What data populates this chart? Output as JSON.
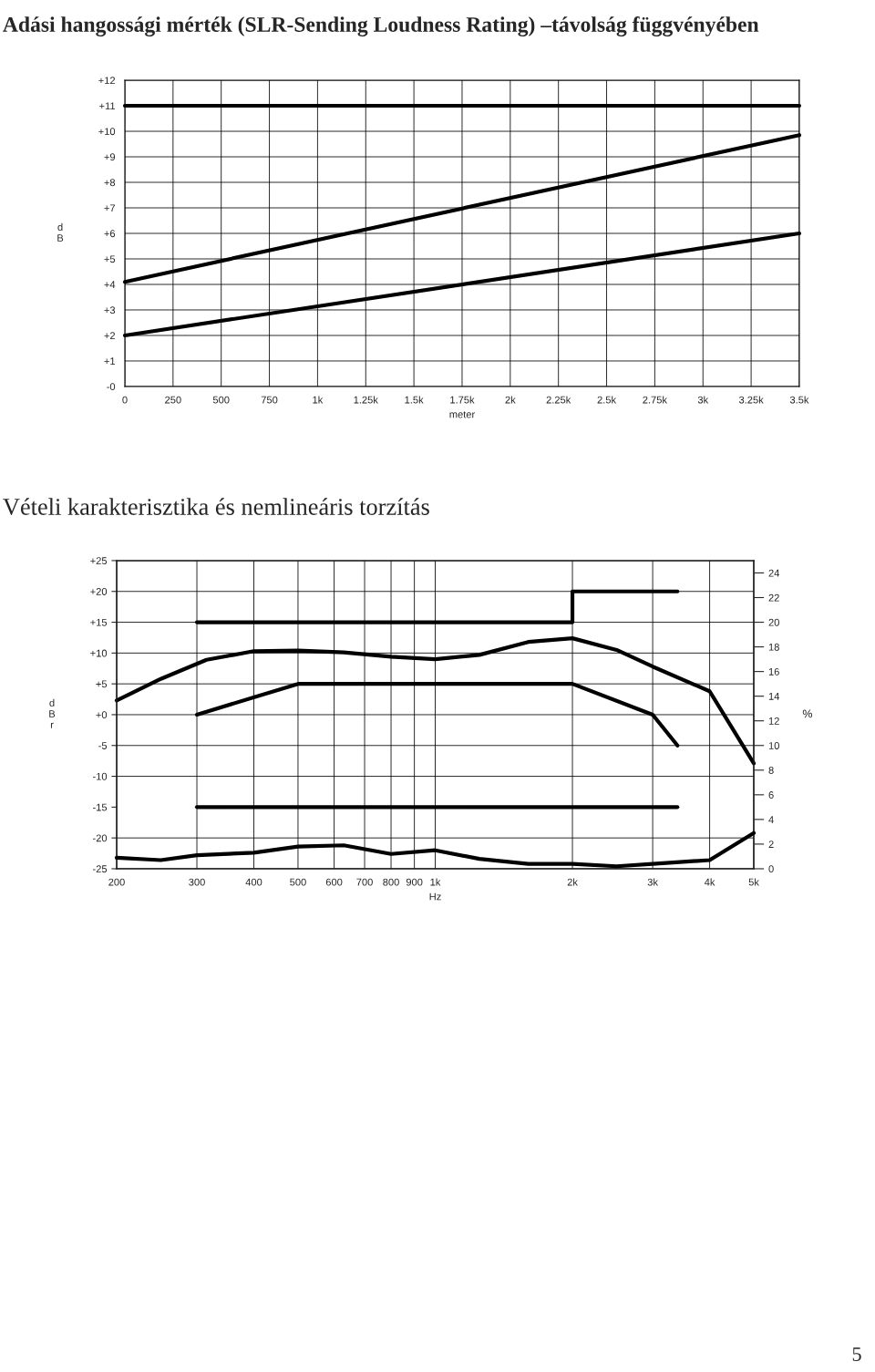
{
  "chart_data": [
    {
      "type": "line",
      "title": "Adási hangossági mérték (SLR-Sending Loudness Rating) –távolság függvényében",
      "xlabel": "meter",
      "ylabel": "dB",
      "xlim": [
        0,
        3500
      ],
      "xticks": [
        0,
        250,
        500,
        750,
        {
          "value": 1000,
          "label": "1k"
        },
        {
          "value": 1250,
          "label": "1.25k"
        },
        {
          "value": 1500,
          "label": "1.5k"
        },
        {
          "value": 1750,
          "label": "1.75k"
        },
        {
          "value": 2000,
          "label": "2k"
        },
        {
          "value": 2250,
          "label": "2.25k"
        },
        {
          "value": 2500,
          "label": "2.5k"
        },
        {
          "value": 2750,
          "label": "2.75k"
        },
        {
          "value": 3000,
          "label": "3k"
        },
        {
          "value": 3250,
          "label": "3.25k"
        },
        {
          "value": 3500,
          "label": "3.5k"
        }
      ],
      "ylim": [
        0,
        12
      ],
      "yticks": [
        {
          "value": 0,
          "label": "-0"
        },
        {
          "value": 1,
          "label": "+1"
        },
        {
          "value": 2,
          "label": "+2"
        },
        {
          "value": 3,
          "label": "+3"
        },
        {
          "value": 4,
          "label": "+4"
        },
        {
          "value": 5,
          "label": "+5"
        },
        {
          "value": 6,
          "label": "+6"
        },
        {
          "value": 7,
          "label": "+7"
        },
        {
          "value": 8,
          "label": "+8"
        },
        {
          "value": 9,
          "label": "+9"
        },
        {
          "value": 10,
          "label": "+10"
        },
        {
          "value": 11,
          "label": "+11"
        },
        {
          "value": 12,
          "label": "+12"
        }
      ],
      "grid": true,
      "series": [
        {
          "color": "#000000",
          "x": [
            0,
            3500
          ],
          "values": [
            11,
            11
          ]
        },
        {
          "color": "#000000",
          "x": [
            0,
            3500
          ],
          "values": [
            4.1,
            9.85
          ]
        },
        {
          "color": "#000000",
          "x": [
            0,
            3500
          ],
          "values": [
            2,
            6
          ]
        }
      ]
    },
    {
      "type": "line",
      "title": "Vételi karakterisztika és nemlineáris torzítás",
      "xlabel": "Hz",
      "ylabel": "dBr",
      "y2label": "%",
      "log": "x",
      "xlim": [
        200,
        5000
      ],
      "xticks": [
        200,
        300,
        400,
        500,
        600,
        700,
        800,
        900,
        {
          "value": 1000,
          "label": "1k"
        },
        {
          "value": 2000,
          "label": "2k"
        },
        {
          "value": 3000,
          "label": "3k"
        },
        {
          "value": 4000,
          "label": "4k"
        },
        {
          "value": 5000,
          "label": "5k"
        }
      ],
      "ylim": [
        -25,
        25
      ],
      "yticks": [
        -25,
        -20,
        -15,
        -10,
        -5,
        {
          "value": 0,
          "label": "+0"
        },
        {
          "value": 5,
          "label": "+5"
        },
        {
          "value": 10,
          "label": "+10"
        },
        {
          "value": 15,
          "label": "+15"
        },
        {
          "value": 20,
          "label": "+20"
        },
        {
          "value": 25,
          "label": "+25"
        }
      ],
      "y2lim": [
        0,
        25
      ],
      "y2ticks": [
        0,
        2,
        4,
        6,
        8,
        10,
        12,
        14,
        16,
        18,
        20,
        22,
        24
      ],
      "grid": true,
      "annotations": [
        "5"
      ],
      "series": [
        {
          "color": "#000000",
          "x": [
            300,
            2000,
            2000,
            3400
          ],
          "values": [
            15,
            15,
            20,
            20
          ]
        },
        {
          "color": "#000000",
          "x": [
            200,
            250,
            315,
            400,
            500,
            630,
            800,
            1000,
            1250,
            1600,
            2000,
            2500,
            3000,
            4000,
            5000
          ],
          "values": [
            2.3,
            5.8,
            8.9,
            10.3,
            10.4,
            10.1,
            9.4,
            9.0,
            9.7,
            11.8,
            12.4,
            10.5,
            7.8,
            3.8,
            -7.9
          ]
        },
        {
          "color": "#000000",
          "x": [
            300,
            500,
            2000,
            3000,
            3400
          ],
          "values": [
            0,
            5,
            5,
            0,
            -5
          ]
        },
        {
          "color": "#000000",
          "x": [
            300,
            3400
          ],
          "values": [
            -15,
            -15
          ]
        },
        {
          "color": "#000000",
          "axis": "y2",
          "x": [
            200,
            250,
            300,
            400,
            500,
            630,
            800,
            1000,
            1250,
            1600,
            2000,
            2500,
            3000,
            4000,
            5000
          ],
          "values": [
            0.9,
            0.7,
            1.1,
            1.3,
            1.8,
            1.9,
            1.2,
            1.5,
            0.8,
            0.4,
            0.4,
            0.2,
            0.4,
            0.7,
            2.9
          ]
        }
      ]
    }
  ]
}
